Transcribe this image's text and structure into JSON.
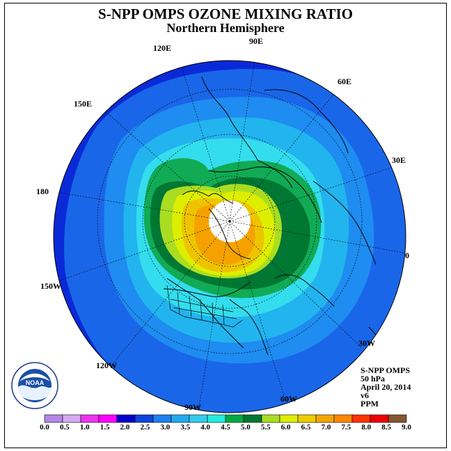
{
  "header": {
    "title": "S-NPP OMPS OZONE MIXING RATIO",
    "subtitle": "Northern Hemisphere"
  },
  "longitude_labels": [
    {
      "id": "lon-120e",
      "text": "120E"
    },
    {
      "id": "lon-90e",
      "text": "90E"
    },
    {
      "id": "lon-60e",
      "text": "60E"
    },
    {
      "id": "lon-150e",
      "text": "150E"
    },
    {
      "id": "lon-30e",
      "text": "30E"
    },
    {
      "id": "lon-180",
      "text": "180"
    },
    {
      "id": "lon-0",
      "text": "0"
    },
    {
      "id": "lon-150w",
      "text": "150W"
    },
    {
      "id": "lon-30w",
      "text": "30W"
    },
    {
      "id": "lon-120w",
      "text": "120W"
    },
    {
      "id": "lon-60w",
      "text": "60W"
    },
    {
      "id": "lon-90w",
      "text": "90W"
    }
  ],
  "info": {
    "instrument": "S-NPP OMPS",
    "level": "50 hPa",
    "date": "April 20, 2014",
    "version": "v6",
    "units": "PPM"
  },
  "logo": {
    "text": "NOAA",
    "ring_text": "NATIONAL OCEANIC AND ATMOSPHERIC ADMINISTRATION U.S. DEPARTMENT OF COMMERCE"
  },
  "colorbar": {
    "labels": [
      "0.0",
      "0.5",
      "1.0",
      "1.5",
      "2.0",
      "2.5",
      "3.0",
      "3.5",
      "4.0",
      "4.5",
      "5.0",
      "5.5",
      "6.0",
      "6.5",
      "7.0",
      "7.5",
      "8.0",
      "8.5",
      "9.0"
    ],
    "colors": [
      "#b585e6",
      "#d5aaf0",
      "#ee33ee",
      "#ff00ff",
      "#0000cc",
      "#1144dd",
      "#1e80ee",
      "#22aaee",
      "#33ccee",
      "#22eedd",
      "#00aa44",
      "#007733",
      "#aadd22",
      "#ddee00",
      "#eecc00",
      "#f5a500",
      "#ff8800",
      "#ff3300",
      "#ee0000",
      "#885533"
    ]
  },
  "map_colors": {
    "band_2_0": "#0a2ad8",
    "band_2_5": "#1a66e8",
    "band_3_0": "#1e8cf0",
    "band_3_5": "#22b4ee",
    "band_4_0": "#33ddee",
    "band_4_5": "#11aa55",
    "band_5_0": "#007733",
    "band_5_5": "#aadd22",
    "band_6_0": "#ddee00",
    "band_6_5": "#eec400",
    "band_7_0": "#f5a200",
    "polar_gap": "#ffffff"
  }
}
